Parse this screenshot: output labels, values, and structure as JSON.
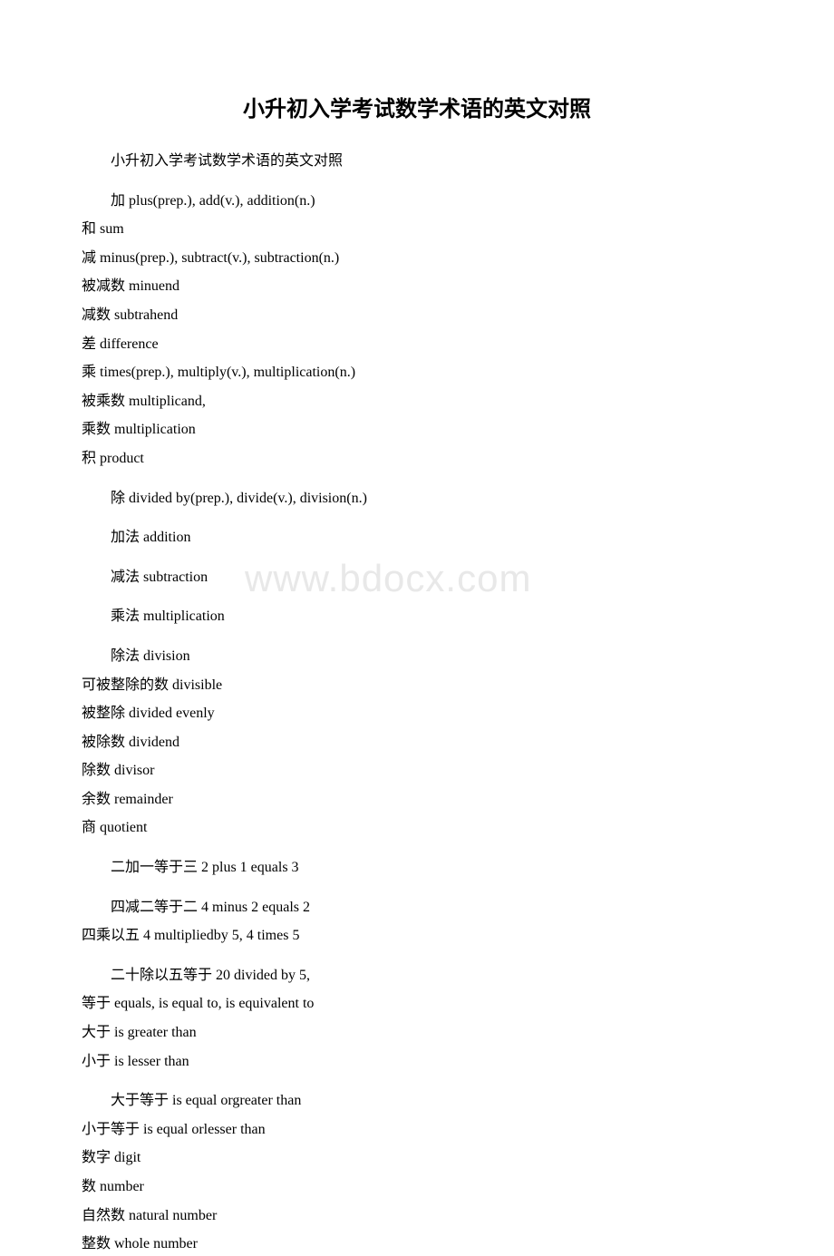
{
  "watermark": "www.bdocx.com",
  "title": "小升初入学考试数学术语的英文对照",
  "block1": {
    "l1": "小升初入学考试数学术语的英文对照"
  },
  "block2": {
    "l1": "加 plus(prep.), add(v.), addition(n.)",
    "l2": "和 sum",
    "l3": "减 minus(prep.), subtract(v.), subtraction(n.)",
    "l4": "被减数 minuend",
    "l5": "减数 subtrahend",
    "l6": "差 difference",
    "l7": "乘 times(prep.), multiply(v.), multiplication(n.)",
    "l8": "被乘数 multiplicand,",
    "l9": "乘数 multiplication",
    "l10": "积 product"
  },
  "block3": {
    "l1": "除 divided by(prep.), divide(v.), division(n.)"
  },
  "block4": {
    "l1": "加法 addition"
  },
  "block5": {
    "l1": "减法 subtraction"
  },
  "block6": {
    "l1": "乘法 multiplication"
  },
  "block7": {
    "l1": "除法 division",
    "l2": "可被整除的数 divisible",
    "l3": "被整除 divided evenly",
    "l4": "被除数 dividend",
    "l5": "除数 divisor",
    "l6": "余数 remainder",
    "l7": "商 quotient"
  },
  "block8": {
    "l1": "二加一等于三 2 plus 1 equals 3"
  },
  "block9": {
    "l1": "四减二等于二 4 minus 2 equals 2",
    "l2": "四乘以五 4 multipliedby 5, 4 times 5"
  },
  "block10": {
    "l1": "二十除以五等于 20 divided by 5,",
    "l2": "等于 equals, is equal to, is equivalent to",
    "l3": "大于 is greater than",
    "l4": "小于 is lesser than"
  },
  "block11": {
    "l1": "大于等于 is equal orgreater than",
    "l2": "小于等于 is equal orlesser than",
    "l3": "数字 digit",
    "l4": "数 number",
    "l5": "自然数 natural number",
    "l6": "整数 whole number"
  }
}
